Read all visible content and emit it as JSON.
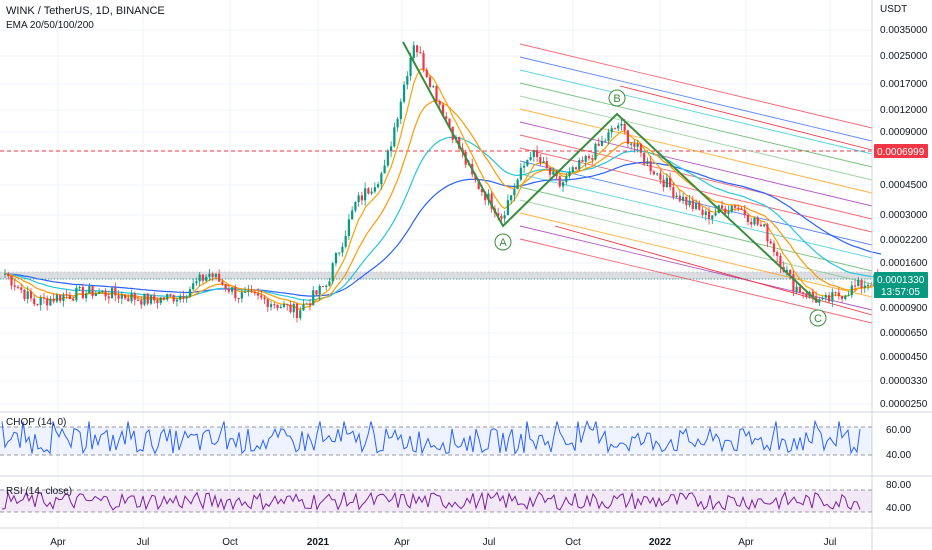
{
  "header": {
    "symbol_line": "WINK / TetherUS, 1D, BINANCE",
    "indicator_line": "EMA 20/50/100/200"
  },
  "price_axis": {
    "currency": "USDT",
    "ticks": [
      "0.0035000",
      "0.0025000",
      "0.0017000",
      "0.0012000",
      "0.0009000",
      "0.0006999",
      "0.0004500",
      "0.0003000",
      "0.0002200",
      "0.0001600",
      "0.0001330",
      "0.0000900",
      "0.0000650",
      "0.0000450",
      "0.0000330",
      "0.0000250"
    ]
  },
  "price_badges": {
    "level_price": "0.0006999",
    "last_price": "0.0001330",
    "countdown": "13:57:05",
    "level_color": "#f23645",
    "last_color": "#089981"
  },
  "time_axis": [
    "Apr",
    "Jul",
    "Oct",
    "2021",
    "Apr",
    "Jul",
    "Oct",
    "2022",
    "Apr",
    "Jul"
  ],
  "pattern_labels": [
    "A",
    "B",
    "C"
  ],
  "chop": {
    "title": "CHOP (14, 0)",
    "ticks": [
      "60.00",
      "40.00"
    ],
    "color": "#2962ff"
  },
  "rsi": {
    "title": "RSI (14, close)",
    "ticks": [
      "80.00",
      "40.00"
    ],
    "color": "#7b1fa2"
  },
  "colors": {
    "up": "#089981",
    "down": "#f23645",
    "ema20": "#f7a600",
    "ema50": "#ff9800",
    "ema100": "#26c6da",
    "ema200": "#2962ff",
    "pattern": "#388e3c"
  },
  "chart_data": {
    "type": "line",
    "y_scale": "log",
    "approx_close_series": [
      [
        "2020-02",
        0.00014
      ],
      [
        "2020-03",
        9.5e-05
      ],
      [
        "2020-04",
        0.000105
      ],
      [
        "2020-05",
        0.00011
      ],
      [
        "2020-06",
        0.000105
      ],
      [
        "2020-07",
        9.8e-05
      ],
      [
        "2020-08",
        0.000105
      ],
      [
        "2020-09",
        0.00014
      ],
      [
        "2020-10",
        0.000105
      ],
      [
        "2020-11",
        9.8e-05
      ],
      [
        "2020-12",
        8.5e-05
      ],
      [
        "2021-01",
        0.00012
      ],
      [
        "2021-02",
        0.00035
      ],
      [
        "2021-03",
        0.00055
      ],
      [
        "2021-04",
        0.003
      ],
      [
        "2021-05",
        0.0012
      ],
      [
        "2021-06",
        0.0005
      ],
      [
        "2021-07",
        0.0003
      ],
      [
        "2021-08",
        0.0007
      ],
      [
        "2021-09",
        0.00045
      ],
      [
        "2021-10",
        0.00065
      ],
      [
        "2021-11",
        0.001
      ],
      [
        "2021-12",
        0.0006
      ],
      [
        "2022-01",
        0.0004
      ],
      [
        "2022-02",
        0.0003
      ],
      [
        "2022-03",
        0.00035
      ],
      [
        "2022-04",
        0.00025
      ],
      [
        "2022-05",
        0.00012
      ],
      [
        "2022-06",
        9.5e-05
      ],
      [
        "2022-07",
        0.000115
      ],
      [
        "2022-08",
        0.000133
      ]
    ],
    "horizontal_level": 0.0006999,
    "last_price": 0.000133,
    "pattern_points": {
      "A": [
        "2021-07",
        0.0003
      ],
      "B": [
        "2021-11",
        0.001
      ],
      "C": [
        "2022-06",
        9.5e-05
      ]
    }
  }
}
